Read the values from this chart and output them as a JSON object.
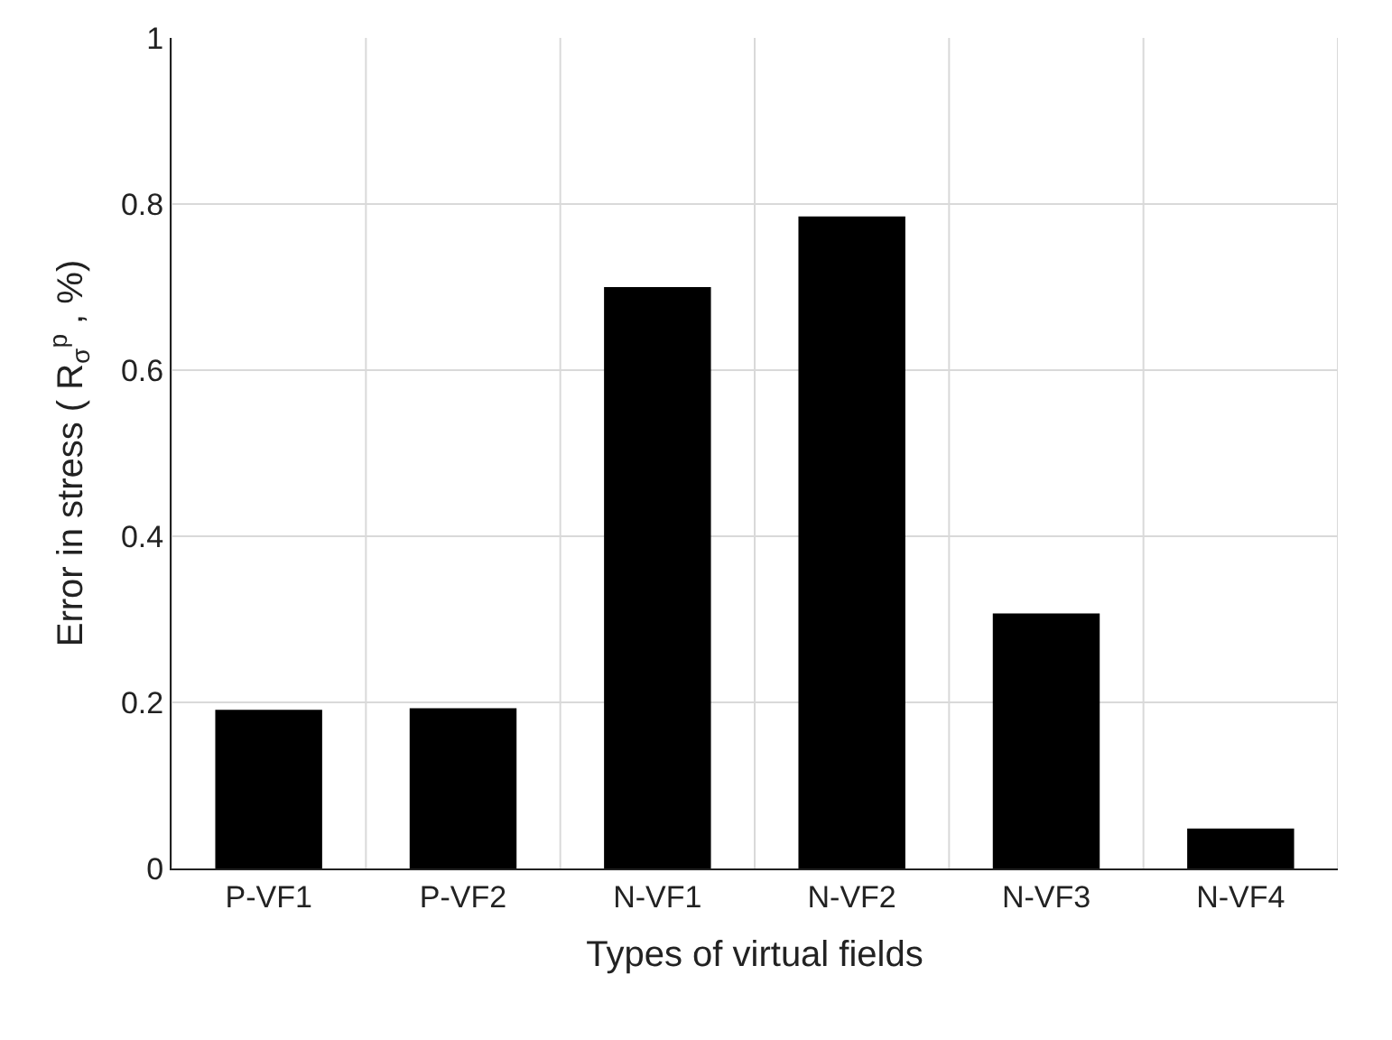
{
  "chart_data": {
    "type": "bar",
    "xlabel": "Types of virtual fields",
    "ylabel": "Error in stress ( R$_{σ}$$^{p}$ , %)",
    "categories": [
      "P-VF1",
      "P-VF2",
      "N-VF1",
      "N-VF2",
      "N-VF3",
      "N-VF4"
    ],
    "values": [
      0.191,
      0.193,
      0.7,
      0.785,
      0.307,
      0.048
    ],
    "color": "#000000",
    "ylim": [
      0,
      1
    ],
    "yticks": [
      0,
      0.2,
      0.4,
      0.6,
      0.8,
      1
    ],
    "grid": true
  }
}
